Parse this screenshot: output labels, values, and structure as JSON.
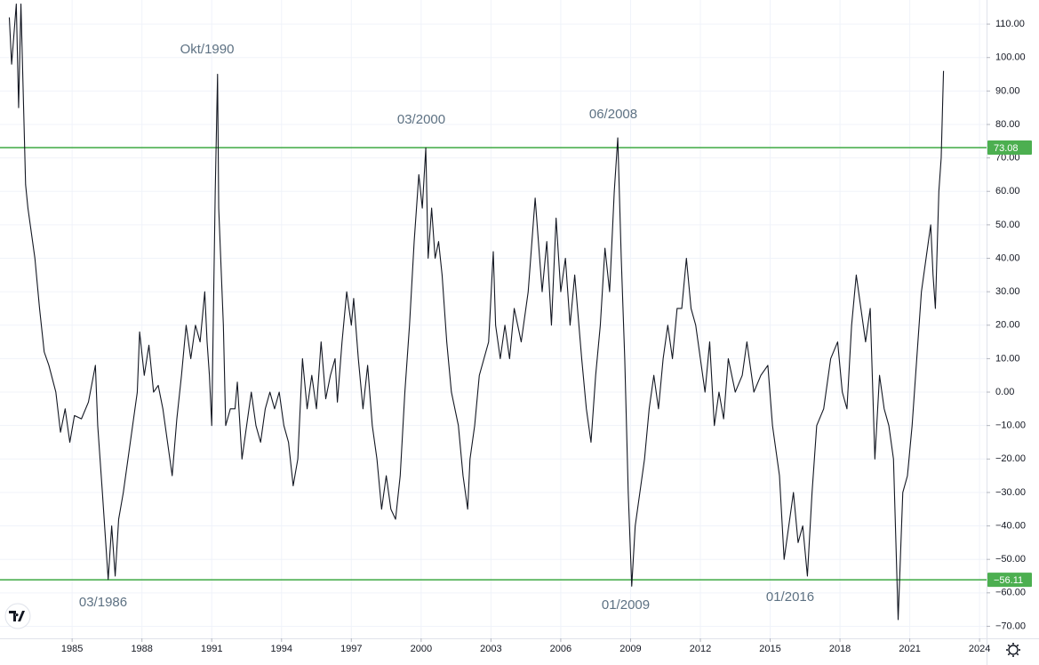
{
  "chart_data": {
    "type": "line",
    "x": [
      1982.3,
      1982.4,
      1982.6,
      1982.7,
      1982.8,
      1983.0,
      1983.1,
      1983.4,
      1983.6,
      1983.8,
      1984.0,
      1984.3,
      1984.5,
      1984.7,
      1984.9,
      1985.1,
      1985.4,
      1985.7,
      1986.0,
      1986.1,
      1986.3,
      1986.55,
      1986.7,
      1986.85,
      1987.0,
      1987.2,
      1987.4,
      1987.6,
      1987.8,
      1987.9,
      1988.1,
      1988.3,
      1988.5,
      1988.7,
      1988.9,
      1989.1,
      1989.3,
      1989.5,
      1989.7,
      1989.9,
      1990.1,
      1990.3,
      1990.5,
      1990.7,
      1990.8,
      1990.9,
      1991.0,
      1991.15,
      1991.25,
      1991.3,
      1991.5,
      1991.6,
      1991.8,
      1992.0,
      1992.1,
      1992.3,
      1992.5,
      1992.7,
      1992.9,
      1993.1,
      1993.3,
      1993.5,
      1993.7,
      1993.9,
      1994.1,
      1994.3,
      1994.5,
      1994.7,
      1994.9,
      1995.1,
      1995.3,
      1995.5,
      1995.7,
      1995.9,
      1996.1,
      1996.3,
      1996.4,
      1996.6,
      1996.8,
      1997.0,
      1997.1,
      1997.3,
      1997.5,
      1997.7,
      1997.9,
      1998.1,
      1998.3,
      1998.5,
      1998.7,
      1998.9,
      1999.1,
      1999.3,
      1999.5,
      1999.7,
      1999.9,
      2000.05,
      2000.2,
      2000.3,
      2000.45,
      2000.6,
      2000.75,
      2000.9,
      2001.1,
      2001.3,
      2001.6,
      2001.8,
      2002.0,
      2002.1,
      2002.3,
      2002.5,
      2002.7,
      2002.9,
      2003.1,
      2003.2,
      2003.4,
      2003.6,
      2003.8,
      2004.0,
      2004.3,
      2004.6,
      2004.9,
      2005.2,
      2005.4,
      2005.6,
      2005.8,
      2006.0,
      2006.2,
      2006.4,
      2006.6,
      2006.9,
      2007.1,
      2007.3,
      2007.5,
      2007.7,
      2007.9,
      2008.1,
      2008.3,
      2008.45,
      2008.6,
      2008.75,
      2008.9,
      2009.05,
      2009.2,
      2009.4,
      2009.6,
      2009.8,
      2010.0,
      2010.2,
      2010.4,
      2010.6,
      2010.8,
      2011.0,
      2011.2,
      2011.4,
      2011.6,
      2011.8,
      2012.0,
      2012.2,
      2012.4,
      2012.6,
      2012.8,
      2013.0,
      2013.2,
      2013.5,
      2013.8,
      2014.0,
      2014.3,
      2014.6,
      2014.9,
      2015.1,
      2015.4,
      2015.6,
      2015.8,
      2016.0,
      2016.2,
      2016.4,
      2016.6,
      2016.8,
      2017.0,
      2017.3,
      2017.6,
      2017.9,
      2018.1,
      2018.3,
      2018.5,
      2018.7,
      2018.9,
      2019.1,
      2019.3,
      2019.5,
      2019.7,
      2019.9,
      2020.1,
      2020.3,
      2020.5,
      2020.7,
      2020.9,
      2021.1,
      2021.3,
      2021.5,
      2021.7,
      2021.9,
      2022.0,
      2022.1,
      2022.25,
      2022.35,
      2022.45
    ],
    "values": [
      112,
      98,
      116,
      85,
      116,
      62,
      55,
      40,
      25,
      12,
      8,
      0,
      -12,
      -5,
      -15,
      -7,
      -8,
      -3,
      8,
      -10,
      -30,
      -56,
      -40,
      -55,
      -38,
      -30,
      -20,
      -10,
      0,
      18,
      5,
      14,
      0,
      2,
      -5,
      -15,
      -25,
      -8,
      5,
      20,
      10,
      20,
      15,
      30,
      15,
      5,
      -10,
      60,
      95,
      55,
      20,
      -10,
      -5,
      -5,
      3,
      -20,
      -10,
      0,
      -10,
      -15,
      -5,
      0,
      -5,
      0,
      -10,
      -15,
      -28,
      -20,
      10,
      -5,
      5,
      -5,
      15,
      -2,
      5,
      10,
      -3,
      15,
      30,
      20,
      28,
      10,
      -5,
      8,
      -10,
      -20,
      -35,
      -25,
      -35,
      -38,
      -25,
      0,
      20,
      45,
      65,
      55,
      73,
      40,
      55,
      40,
      45,
      35,
      15,
      0,
      -10,
      -25,
      -35,
      -20,
      -10,
      5,
      10,
      15,
      42,
      20,
      10,
      20,
      10,
      25,
      15,
      30,
      58,
      30,
      45,
      20,
      52,
      30,
      40,
      20,
      35,
      10,
      -5,
      -15,
      5,
      20,
      43,
      30,
      60,
      76,
      40,
      10,
      -30,
      -58,
      -40,
      -30,
      -20,
      -5,
      5,
      -5,
      10,
      20,
      10,
      25,
      25,
      40,
      25,
      20,
      10,
      0,
      15,
      -10,
      0,
      -8,
      10,
      0,
      5,
      15,
      0,
      5,
      8,
      -10,
      -25,
      -50,
      -40,
      -30,
      -45,
      -40,
      -55,
      -30,
      -10,
      -5,
      10,
      15,
      0,
      -5,
      20,
      35,
      25,
      15,
      25,
      -20,
      5,
      -5,
      -10,
      -20,
      -68,
      -30,
      -25,
      -10,
      10,
      30,
      40,
      50,
      35,
      25,
      60,
      70,
      96
    ],
    "color": "#131722",
    "xlim": [
      1981.9,
      2024.3
    ],
    "xticks": [
      1985,
      1988,
      1991,
      1994,
      1997,
      2000,
      2003,
      2006,
      2009,
      2012,
      2015,
      2018,
      2021,
      2024
    ],
    "ylim": [
      -73.6,
      117.2
    ],
    "yticks": [
      {
        "value": -70,
        "label": "−70.00"
      },
      {
        "value": -60,
        "label": "−60.00"
      },
      {
        "value": -50,
        "label": "−50.00"
      },
      {
        "value": -40,
        "label": "−40.00"
      },
      {
        "value": -30,
        "label": "−30.00"
      },
      {
        "value": -20,
        "label": "−20.00"
      },
      {
        "value": -10,
        "label": "−10.00"
      },
      {
        "value": 0,
        "label": "0.00"
      },
      {
        "value": 10,
        "label": "10.00"
      },
      {
        "value": 20,
        "label": "20.00"
      },
      {
        "value": 30,
        "label": "30.00"
      },
      {
        "value": 40,
        "label": "40.00"
      },
      {
        "value": 50,
        "label": "50.00"
      },
      {
        "value": 60,
        "label": "60.00"
      },
      {
        "value": 70,
        "label": "70.00"
      },
      {
        "value": 80,
        "label": "80.00"
      },
      {
        "value": 90,
        "label": "90.00"
      },
      {
        "value": 100,
        "label": "100.00"
      },
      {
        "value": 110,
        "label": "110.00"
      }
    ],
    "grid": true,
    "levels": [
      {
        "value": 73.08,
        "label": "73.08",
        "color": "#4caf50"
      },
      {
        "value": -56.11,
        "label": "−56.11",
        "color": "#4caf50"
      }
    ],
    "annotations": [
      "Okt/1990",
      "03/2000",
      "06/2008",
      "03/1986",
      "01/2009",
      "01/2016"
    ]
  }
}
